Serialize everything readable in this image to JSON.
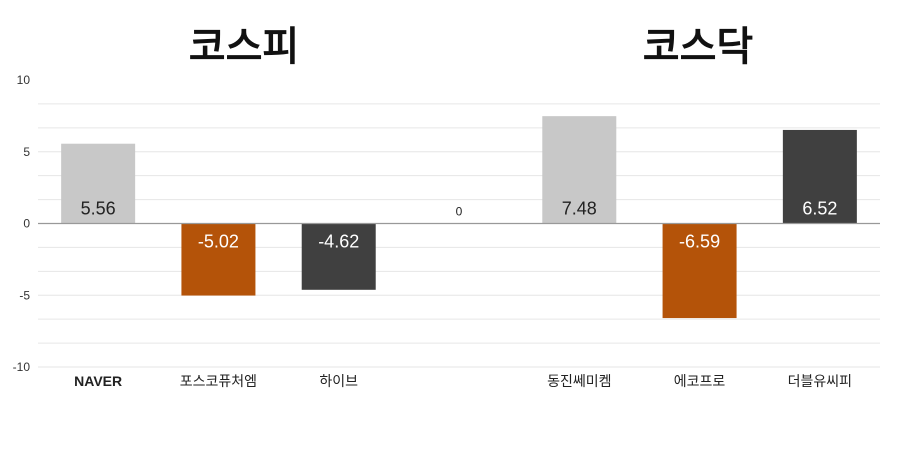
{
  "headings": {
    "left": "코스피",
    "right": "코스닥"
  },
  "colors": {
    "light": "#c8c8c8",
    "orange": "#b45309",
    "dark": "#404040",
    "grid": "#e6e6e6",
    "axis": "#999999"
  },
  "chart_data": {
    "type": "bar",
    "title": "",
    "xlabel": "",
    "ylabel": "",
    "ylim": [
      -10,
      10
    ],
    "yticks": [
      "10",
      "5",
      "0",
      "-5",
      "-10"
    ],
    "grid": true,
    "categories": [
      "NAVER",
      "포스코퓨처엠",
      "하이브",
      "",
      "동진쎄미켐",
      "에코프로",
      "더블유씨피"
    ],
    "values": [
      5.56,
      -5.02,
      -4.62,
      0,
      7.48,
      -6.59,
      6.52
    ],
    "labels": [
      "5.56",
      "-5.02",
      "-4.62",
      "0",
      "7.48",
      "-6.59",
      "6.52"
    ],
    "bar_colors": [
      "light",
      "orange",
      "dark",
      "none",
      "light",
      "orange",
      "dark"
    ]
  }
}
